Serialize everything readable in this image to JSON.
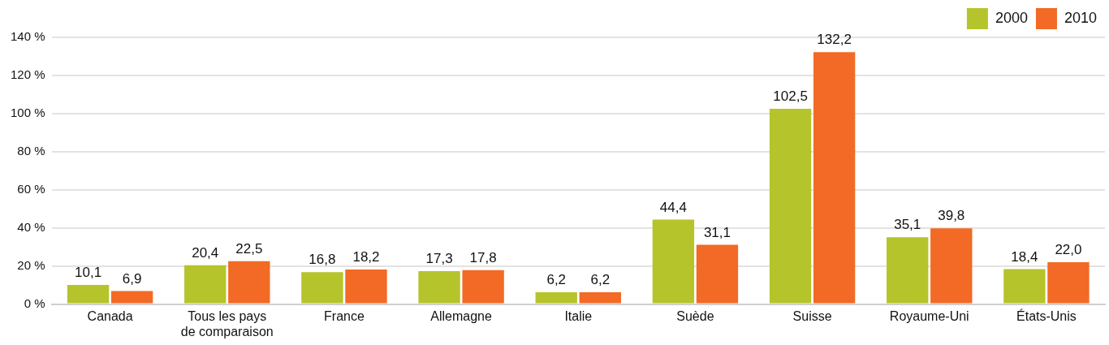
{
  "chart_data": {
    "type": "bar",
    "categories": [
      "Canada",
      "Tous les pays de comparaison",
      "France",
      "Allemagne",
      "Italie",
      "Suède",
      "Suisse",
      "Royaume-Uni",
      "États-Unis"
    ],
    "series": [
      {
        "name": "2000",
        "color": "#b5c42a",
        "values": [
          10.1,
          20.4,
          16.8,
          17.3,
          6.2,
          44.4,
          102.5,
          35.1,
          18.4
        ],
        "value_labels": [
          "10,1",
          "20,4",
          "16,8",
          "17,3",
          "6,2",
          "44,4",
          "102,5",
          "35,1",
          "18,4"
        ]
      },
      {
        "name": "2010",
        "color": "#f26a25",
        "values": [
          6.9,
          22.5,
          18.2,
          17.8,
          6.2,
          31.1,
          132.2,
          39.8,
          22.0
        ],
        "value_labels": [
          "6,9",
          "22,5",
          "18,2",
          "17,8",
          "6,2",
          "31,1",
          "132,2",
          "39,8",
          "22,0"
        ]
      }
    ],
    "ylim": [
      0,
      140
    ],
    "yticks": [
      {
        "value": 0,
        "label": "0 %"
      },
      {
        "value": 20,
        "label": "20 %"
      },
      {
        "value": 40,
        "label": "40 %"
      },
      {
        "value": 60,
        "label": "60 %"
      },
      {
        "value": 80,
        "label": "80 %"
      },
      {
        "value": 100,
        "label": "100 %"
      },
      {
        "value": 120,
        "label": "120 %"
      },
      {
        "value": 140,
        "label": "140 %"
      }
    ],
    "grid": "y",
    "legend": "top right"
  }
}
